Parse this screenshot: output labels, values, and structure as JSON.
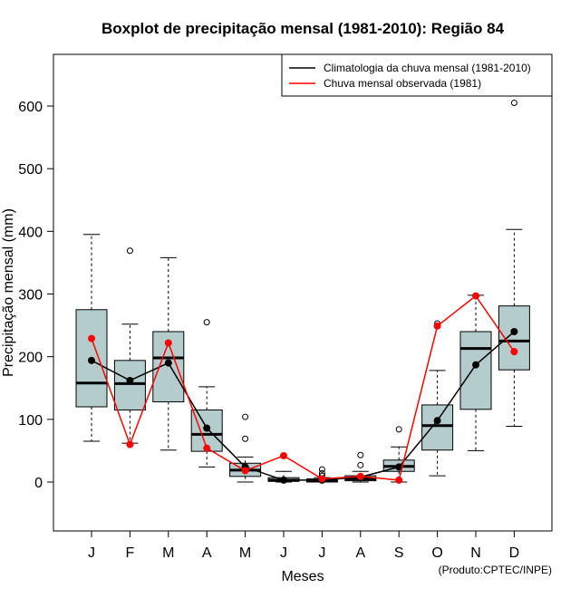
{
  "chart_data": {
    "type": "boxplot",
    "title": "Boxplot de precipitação mensal (1981-2010): Região 84",
    "xlabel": "Meses",
    "ylabel": "Precipitação mensal (mm)",
    "ylim": [
      -80,
      680
    ],
    "yticks": [
      0,
      100,
      200,
      300,
      400,
      500,
      600
    ],
    "categories": [
      "J",
      "F",
      "M",
      "A",
      "M",
      "J",
      "J",
      "A",
      "S",
      "O",
      "N",
      "D"
    ],
    "boxes": [
      {
        "whisker_low": 65,
        "q1": 120,
        "median": 158,
        "q3": 275,
        "whisker_high": 395,
        "outliers": []
      },
      {
        "whisker_low": 62,
        "q1": 115,
        "median": 157,
        "q3": 194,
        "whisker_high": 252,
        "outliers": [
          369
        ]
      },
      {
        "whisker_low": 51,
        "q1": 128,
        "median": 198,
        "q3": 240,
        "whisker_high": 358,
        "outliers": []
      },
      {
        "whisker_low": 24,
        "q1": 49,
        "median": 76,
        "q3": 115,
        "whisker_high": 152,
        "outliers": [
          255
        ]
      },
      {
        "whisker_low": 0,
        "q1": 9,
        "median": 19,
        "q3": 30,
        "whisker_high": 40,
        "outliers": [
          69,
          104
        ]
      },
      {
        "whisker_low": 0,
        "q1": 1,
        "median": 3,
        "q3": 7,
        "whisker_high": 17,
        "outliers": []
      },
      {
        "whisker_low": 0,
        "q1": 0,
        "median": 2,
        "q3": 5,
        "whisker_high": 7,
        "outliers": [
          10,
          14,
          20
        ]
      },
      {
        "whisker_low": 0,
        "q1": 2,
        "median": 5,
        "q3": 10,
        "whisker_high": 17,
        "outliers": [
          27,
          43
        ]
      },
      {
        "whisker_low": 0,
        "q1": 17,
        "median": 25,
        "q3": 35,
        "whisker_high": 56,
        "outliers": [
          84
        ]
      },
      {
        "whisker_low": 10,
        "q1": 51,
        "median": 90,
        "q3": 123,
        "whisker_high": 178,
        "outliers": [
          253
        ]
      },
      {
        "whisker_low": 50,
        "q1": 116,
        "median": 213,
        "q3": 240,
        "whisker_high": 298,
        "outliers": []
      },
      {
        "whisker_low": 89,
        "q1": 179,
        "median": 225,
        "q3": 281,
        "whisker_high": 403,
        "outliers": [
          605
        ]
      }
    ],
    "series": [
      {
        "name": "Climatologia da chuva mensal (1981-2010)",
        "color": "#000000",
        "values": [
          194,
          162,
          190,
          86,
          24,
          3,
          3,
          8,
          24,
          98,
          187,
          240
        ]
      },
      {
        "name": "Chuva mensal observada (1981)",
        "color": "#ff0000",
        "values": [
          229,
          60,
          222,
          54,
          18,
          42,
          5,
          9,
          3,
          249,
          297,
          208
        ]
      }
    ],
    "box_fill": "#b5cccc",
    "legend_position": "top-right",
    "credit": "(Produto:CPTEC/INPE)"
  }
}
